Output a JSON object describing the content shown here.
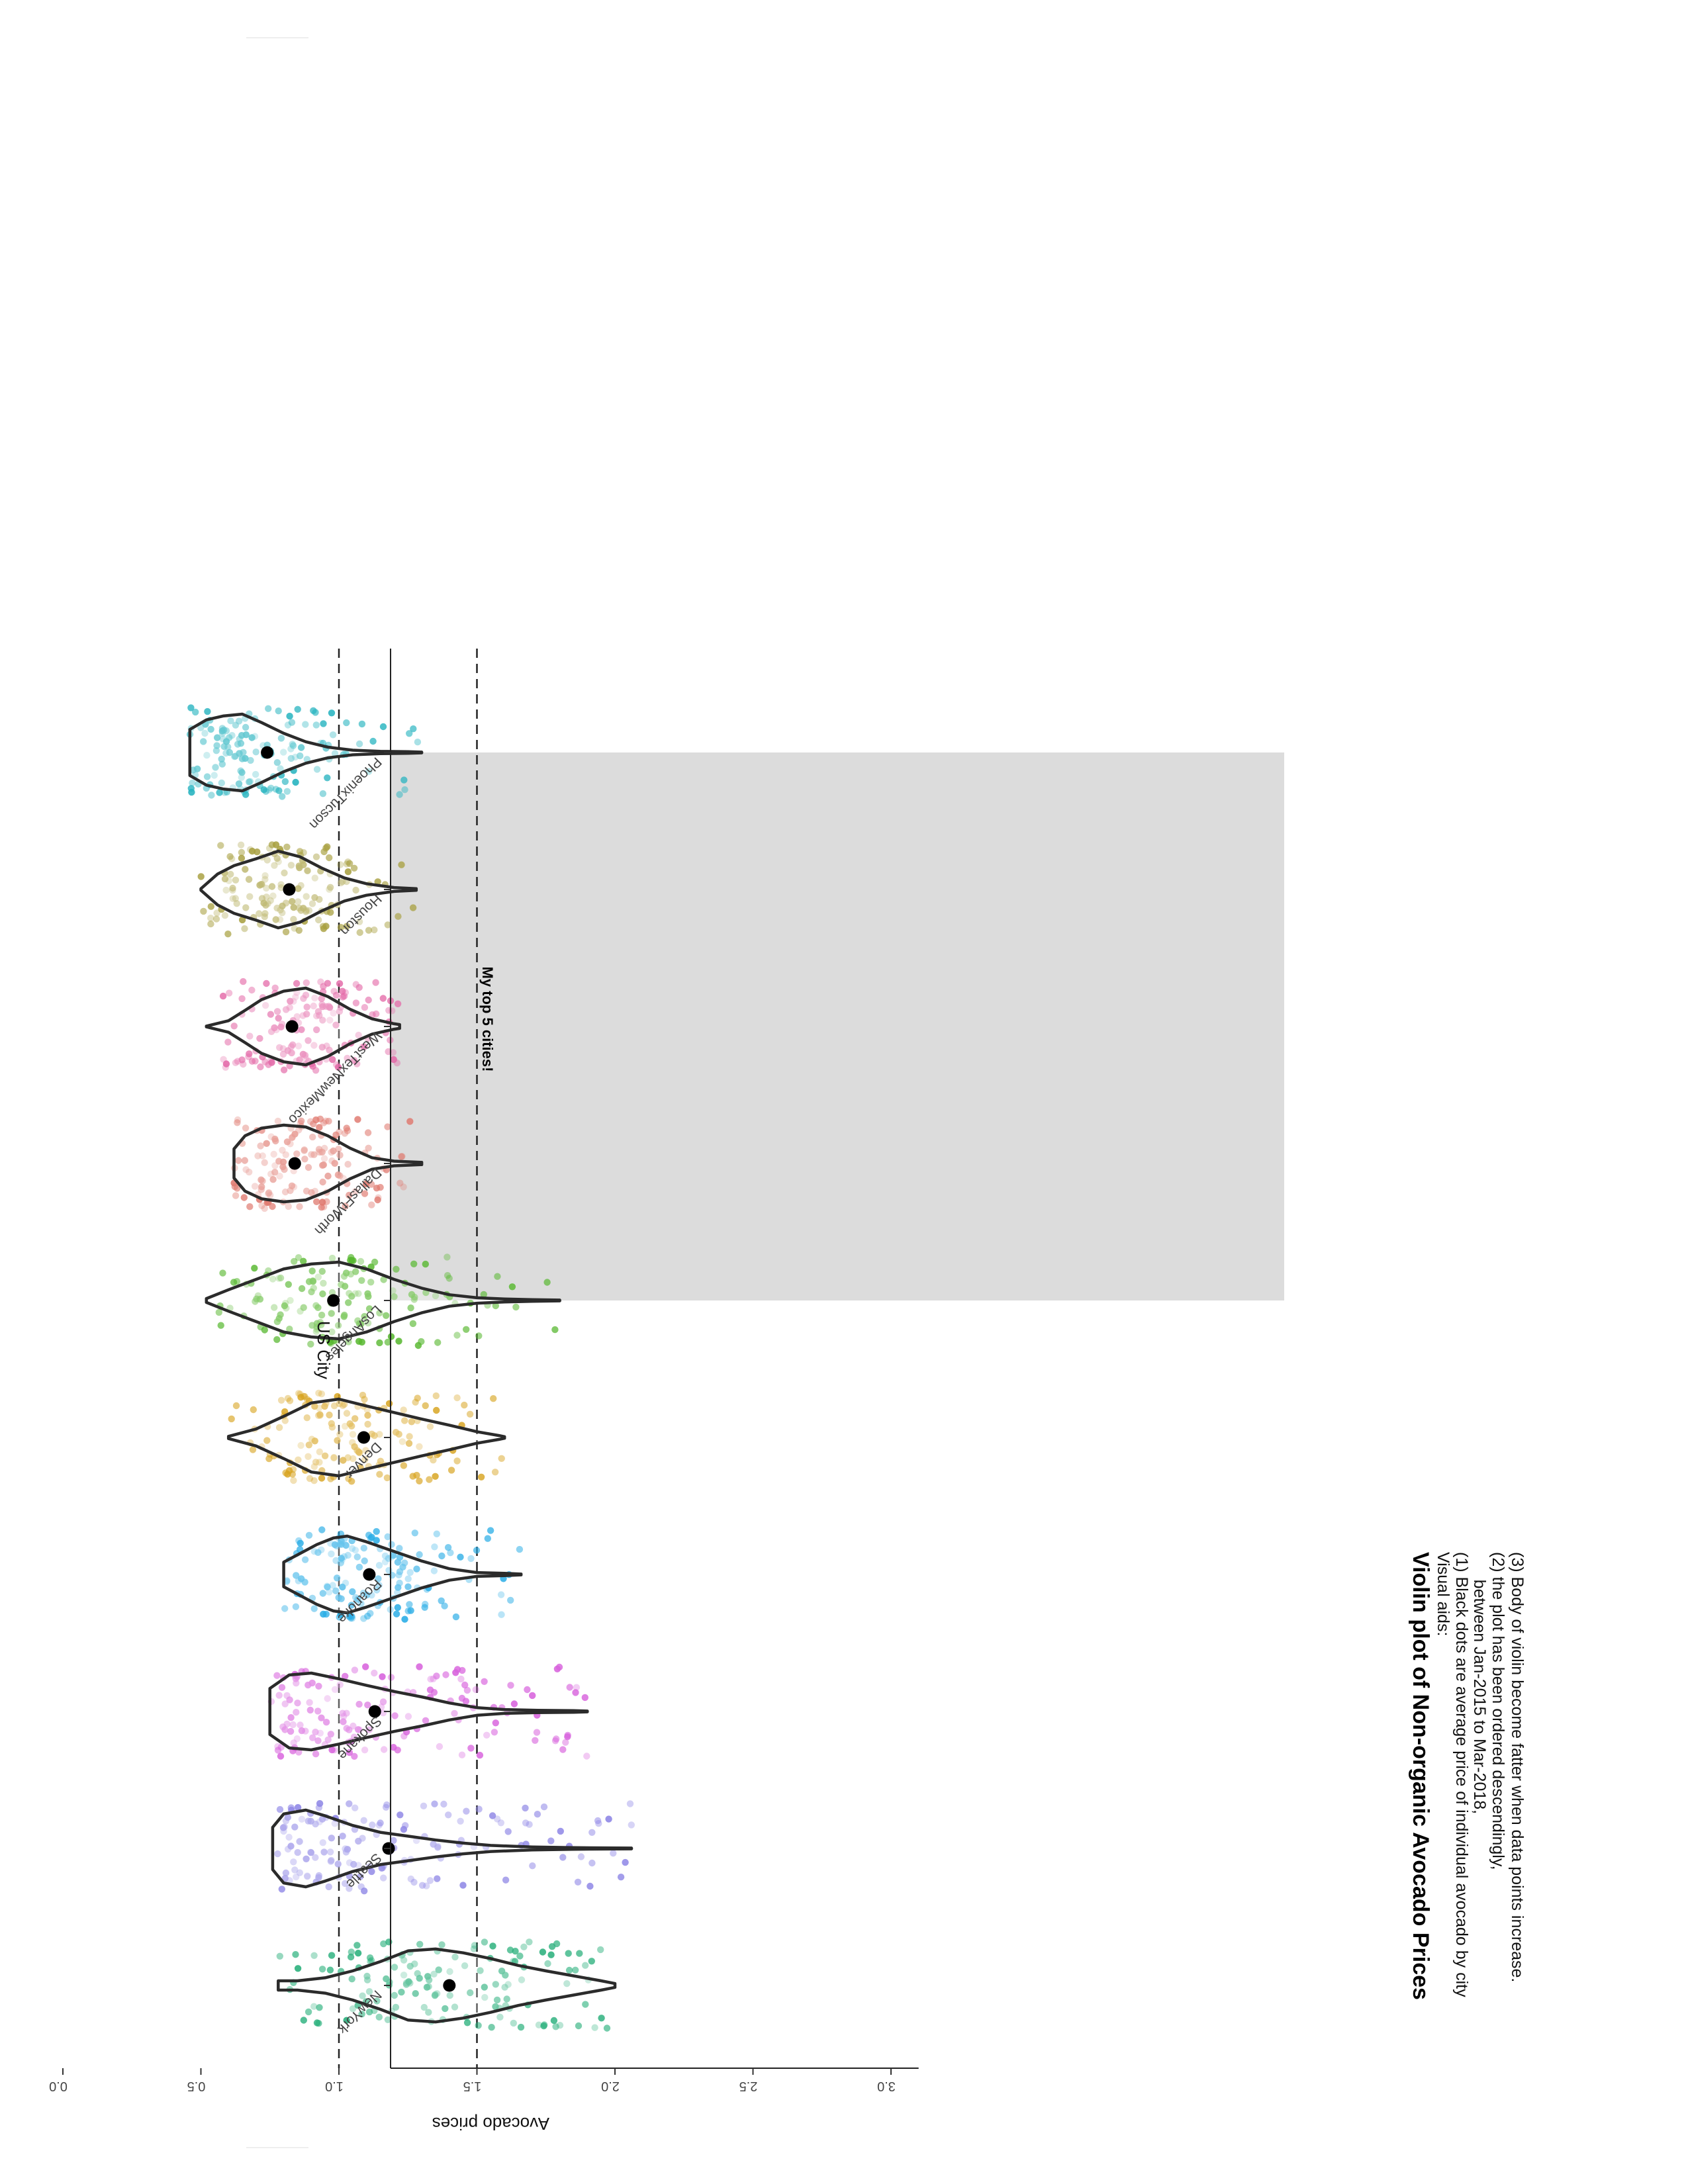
{
  "chart_data": {
    "type": "violin",
    "title": "Violin plot of Non-organic Avocado Prices",
    "subtitle_lines": [
      "Visual aids:",
      "(1) Black dots are average price of individual avocado by city",
      "      between Jan-2015 to Mar-2018,",
      "(2) the plot has been ordered descendingly,",
      "(3) Body of violin become fatter when data points increase."
    ],
    "xlabel": "US City",
    "ylabel": "Avocado prices",
    "ylim": [
      0,
      3.1
    ],
    "yticks": [
      0.0,
      0.5,
      1.0,
      1.5,
      2.0,
      2.5,
      3.0
    ],
    "ytick_labels": [
      "0.0",
      "0.5",
      "1.0",
      "1.5",
      "2.0",
      "2.5",
      "3.0"
    ],
    "reference_lines": [
      1.0,
      1.5
    ],
    "reference_line_style": "dashed",
    "highlight": {
      "from_category": "LosAngeles",
      "to_category": "PhoenixTucson",
      "label": "My top 5 cities!",
      "color": "#dcdcdc",
      "label_price": 1.52
    },
    "categories": [
      "NewYork",
      "Seattle",
      "Spokane",
      "Roanoke",
      "Denver",
      "LosAngeles",
      "DallasFtWorth",
      "WestTexNewMexico",
      "Houston",
      "PhoenixTucson"
    ],
    "series": [
      {
        "category": "NewYork",
        "color": "#2ab07c",
        "mean": 1.4,
        "min": 0.78,
        "max": 2.0,
        "density": [
          [
            0.78,
            0.12
          ],
          [
            0.85,
            0.12
          ],
          [
            0.95,
            0.2
          ],
          [
            1.05,
            0.38
          ],
          [
            1.15,
            0.62
          ],
          [
            1.25,
            0.9
          ],
          [
            1.35,
            0.95
          ],
          [
            1.45,
            0.85
          ],
          [
            1.55,
            0.7
          ],
          [
            1.65,
            0.52
          ],
          [
            1.75,
            0.38
          ],
          [
            1.85,
            0.25
          ],
          [
            1.95,
            0.12
          ],
          [
            2.0,
            0.05
          ]
        ]
      },
      {
        "category": "Seattle",
        "color": "#8f87e6",
        "mean": 1.18,
        "min": 0.76,
        "max": 2.06,
        "density": [
          [
            0.76,
            0.55
          ],
          [
            0.8,
            0.9
          ],
          [
            0.88,
            1.0
          ],
          [
            0.95,
            0.85
          ],
          [
            1.05,
            0.6
          ],
          [
            1.15,
            0.42
          ],
          [
            1.25,
            0.32
          ],
          [
            1.35,
            0.22
          ],
          [
            1.45,
            0.14
          ],
          [
            1.55,
            0.08
          ],
          [
            1.7,
            0.04
          ],
          [
            1.85,
            0.02
          ],
          [
            2.06,
            0.01
          ]
        ]
      },
      {
        "category": "Spokane",
        "color": "#d863dd",
        "mean": 1.13,
        "min": 0.75,
        "max": 1.9,
        "density": [
          [
            0.75,
            0.6
          ],
          [
            0.82,
            0.95
          ],
          [
            0.9,
            1.0
          ],
          [
            1.0,
            0.85
          ],
          [
            1.1,
            0.68
          ],
          [
            1.2,
            0.52
          ],
          [
            1.3,
            0.38
          ],
          [
            1.4,
            0.22
          ],
          [
            1.5,
            0.1
          ],
          [
            1.6,
            0.05
          ],
          [
            1.72,
            0.03
          ],
          [
            1.85,
            0.02
          ],
          [
            1.9,
            0.01
          ]
        ]
      },
      {
        "category": "Roanoke",
        "color": "#2aade6",
        "mean": 1.11,
        "min": 0.8,
        "max": 1.66,
        "density": [
          [
            0.8,
            0.32
          ],
          [
            0.86,
            0.55
          ],
          [
            0.92,
            0.78
          ],
          [
            0.98,
            0.95
          ],
          [
            1.03,
            1.0
          ],
          [
            1.1,
            0.85
          ],
          [
            1.2,
            0.6
          ],
          [
            1.3,
            0.35
          ],
          [
            1.4,
            0.15
          ],
          [
            1.5,
            0.05
          ],
          [
            1.6,
            0.03
          ],
          [
            1.66,
            0.01
          ]
        ]
      },
      {
        "category": "Denver",
        "color": "#d8a420",
        "mean": 1.09,
        "min": 0.6,
        "max": 1.6,
        "density": [
          [
            0.6,
            0.03
          ],
          [
            0.7,
            0.22
          ],
          [
            0.8,
            0.55
          ],
          [
            0.9,
            0.9
          ],
          [
            1.0,
            1.0
          ],
          [
            1.1,
            0.82
          ],
          [
            1.2,
            0.65
          ],
          [
            1.3,
            0.48
          ],
          [
            1.4,
            0.32
          ],
          [
            1.5,
            0.15
          ],
          [
            1.58,
            0.05
          ],
          [
            1.6,
            0.02
          ]
        ]
      },
      {
        "category": "LosAngeles",
        "color": "#58b830",
        "mean": 0.98,
        "min": 0.52,
        "max": 1.8,
        "density": [
          [
            0.52,
            0.05
          ],
          [
            0.6,
            0.28
          ],
          [
            0.7,
            0.55
          ],
          [
            0.8,
            0.82
          ],
          [
            0.9,
            0.95
          ],
          [
            1.0,
            1.0
          ],
          [
            1.1,
            0.82
          ],
          [
            1.2,
            0.55
          ],
          [
            1.3,
            0.32
          ],
          [
            1.4,
            0.15
          ],
          [
            1.5,
            0.07
          ],
          [
            1.6,
            0.04
          ],
          [
            1.7,
            0.02
          ],
          [
            1.8,
            0.01
          ]
        ]
      },
      {
        "category": "DallasFtWorth",
        "color": "#e07a70",
        "mean": 0.84,
        "min": 0.62,
        "max": 1.3,
        "density": [
          [
            0.62,
            0.38
          ],
          [
            0.66,
            0.72
          ],
          [
            0.72,
            0.92
          ],
          [
            0.8,
            1.0
          ],
          [
            0.88,
            0.95
          ],
          [
            0.96,
            0.72
          ],
          [
            1.04,
            0.4
          ],
          [
            1.12,
            0.15
          ],
          [
            1.2,
            0.06
          ],
          [
            1.3,
            0.03
          ]
        ]
      },
      {
        "category": "WestTexNewMexico",
        "color": "#e46aa8",
        "mean": 0.83,
        "min": 0.52,
        "max": 1.22,
        "density": [
          [
            0.52,
            0.01
          ],
          [
            0.6,
            0.15
          ],
          [
            0.66,
            0.42
          ],
          [
            0.72,
            0.7
          ],
          [
            0.8,
            0.92
          ],
          [
            0.88,
            1.0
          ],
          [
            0.96,
            0.78
          ],
          [
            1.04,
            0.45
          ],
          [
            1.12,
            0.2
          ],
          [
            1.2,
            0.07
          ],
          [
            1.22,
            0.05
          ]
        ]
      },
      {
        "category": "Houston",
        "color": "#a8a040",
        "mean": 0.82,
        "min": 0.5,
        "max": 1.28,
        "density": [
          [
            0.5,
            0.02
          ],
          [
            0.56,
            0.4
          ],
          [
            0.62,
            0.62
          ],
          [
            0.7,
            0.8
          ],
          [
            0.78,
            1.0
          ],
          [
            0.86,
            0.85
          ],
          [
            0.94,
            0.55
          ],
          [
            1.02,
            0.3
          ],
          [
            1.1,
            0.15
          ],
          [
            1.2,
            0.05
          ],
          [
            1.28,
            0.02
          ]
        ]
      },
      {
        "category": "PhoenixTucson",
        "color": "#28b4c0",
        "mean": 0.74,
        "min": 0.46,
        "max": 1.3,
        "density": [
          [
            0.46,
            0.6
          ],
          [
            0.52,
            0.85
          ],
          [
            0.58,
            0.95
          ],
          [
            0.65,
            1.0
          ],
          [
            0.72,
            0.78
          ],
          [
            0.8,
            0.5
          ],
          [
            0.88,
            0.28
          ],
          [
            0.96,
            0.14
          ],
          [
            1.05,
            0.06
          ],
          [
            1.15,
            0.03
          ],
          [
            1.25,
            0.02
          ],
          [
            1.3,
            0.01
          ]
        ]
      }
    ]
  }
}
